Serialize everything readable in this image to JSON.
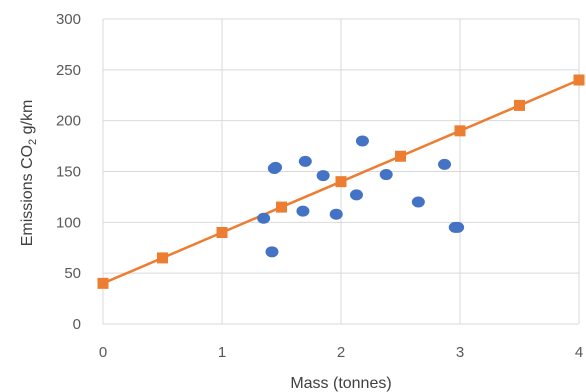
{
  "chart_data": {
    "type": "scatter",
    "xlabel": "Mass (tonnes)",
    "ylabel": {
      "prefix": "Emissions CO",
      "subscript": "2",
      "suffix": " g/km"
    },
    "xlim": [
      0,
      4
    ],
    "ylim": [
      0,
      300
    ],
    "x_ticks": [
      "0",
      "1",
      "2",
      "3",
      "4"
    ],
    "y_ticks": [
      "0",
      "50",
      "100",
      "150",
      "200",
      "250",
      "300"
    ],
    "grid": true,
    "legend": "none",
    "series": [
      {
        "kind": "scatter",
        "color": "#4472c4",
        "marker": "circle",
        "points": [
          {
            "x": 1.35,
            "y": 104
          },
          {
            "x": 1.42,
            "y": 71
          },
          {
            "x": 1.44,
            "y": 153
          },
          {
            "x": 1.45,
            "y": 154
          },
          {
            "x": 1.68,
            "y": 111
          },
          {
            "x": 1.7,
            "y": 160
          },
          {
            "x": 1.85,
            "y": 146
          },
          {
            "x": 1.96,
            "y": 108
          },
          {
            "x": 2.13,
            "y": 127
          },
          {
            "x": 2.18,
            "y": 180
          },
          {
            "x": 2.38,
            "y": 147
          },
          {
            "x": 2.65,
            "y": 120
          },
          {
            "x": 2.87,
            "y": 157
          },
          {
            "x": 2.96,
            "y": 95
          },
          {
            "x": 2.98,
            "y": 95
          }
        ]
      },
      {
        "kind": "line",
        "color": "#ed7d31",
        "marker": "square",
        "points": [
          {
            "x": 0,
            "y": 40
          },
          {
            "x": 0.5,
            "y": 65
          },
          {
            "x": 1,
            "y": 90
          },
          {
            "x": 1.5,
            "y": 115
          },
          {
            "x": 2,
            "y": 140
          },
          {
            "x": 2.5,
            "y": 165
          },
          {
            "x": 3,
            "y": 190
          },
          {
            "x": 3.5,
            "y": 215
          },
          {
            "x": 4,
            "y": 240
          }
        ]
      }
    ]
  }
}
